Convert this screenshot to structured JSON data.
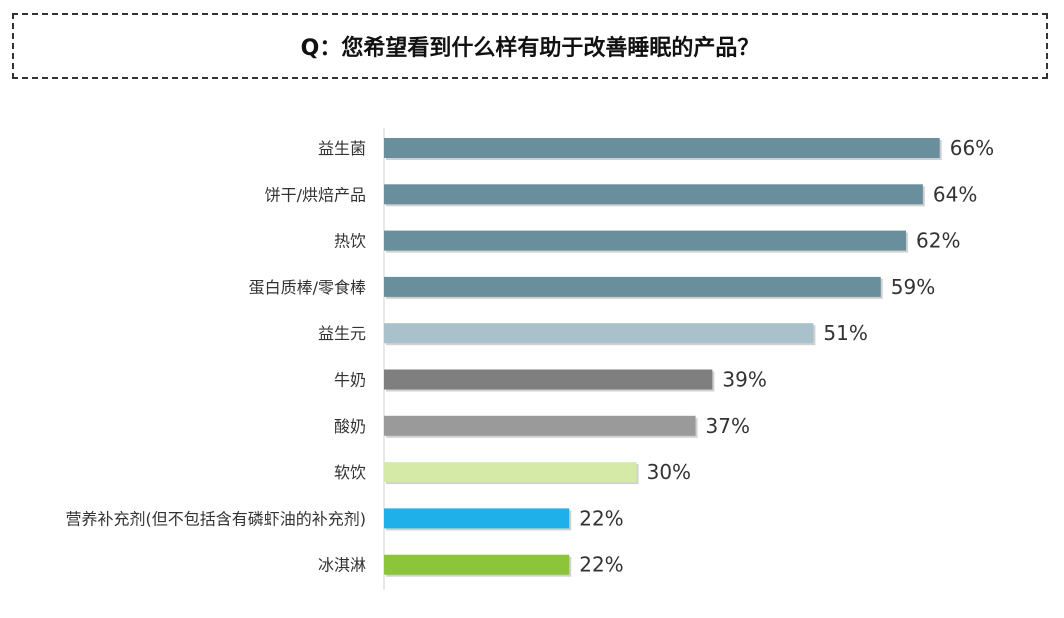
{
  "chart_data": {
    "type": "bar",
    "orientation": "horizontal",
    "title": "Q：您希望看到什么样有助于改善睡眠的产品？",
    "categories": [
      "益生菌",
      "饼干/烘焙产品",
      "热饮",
      "蛋白质棒/零食棒",
      "益生元",
      "牛奶",
      "酸奶",
      "软饮",
      "营养补充剂(但不包括含有磷虾油的补充剂)",
      "冰淇淋"
    ],
    "values": [
      66,
      64,
      62,
      59,
      51,
      39,
      37,
      30,
      22,
      22
    ],
    "value_labels": [
      "66%",
      "64%",
      "62%",
      "59%",
      "51%",
      "39%",
      "37%",
      "30%",
      "22%",
      "22%"
    ],
    "colors": [
      "#6a8f9c",
      "#6a8f9c",
      "#6a8f9c",
      "#6a8f9c",
      "#a9c1cb",
      "#7f7f7f",
      "#9a9a9a",
      "#d6eaa8",
      "#1fb0ea",
      "#8cc43a"
    ],
    "value_unit": "%",
    "grid": false,
    "legend": "none"
  }
}
